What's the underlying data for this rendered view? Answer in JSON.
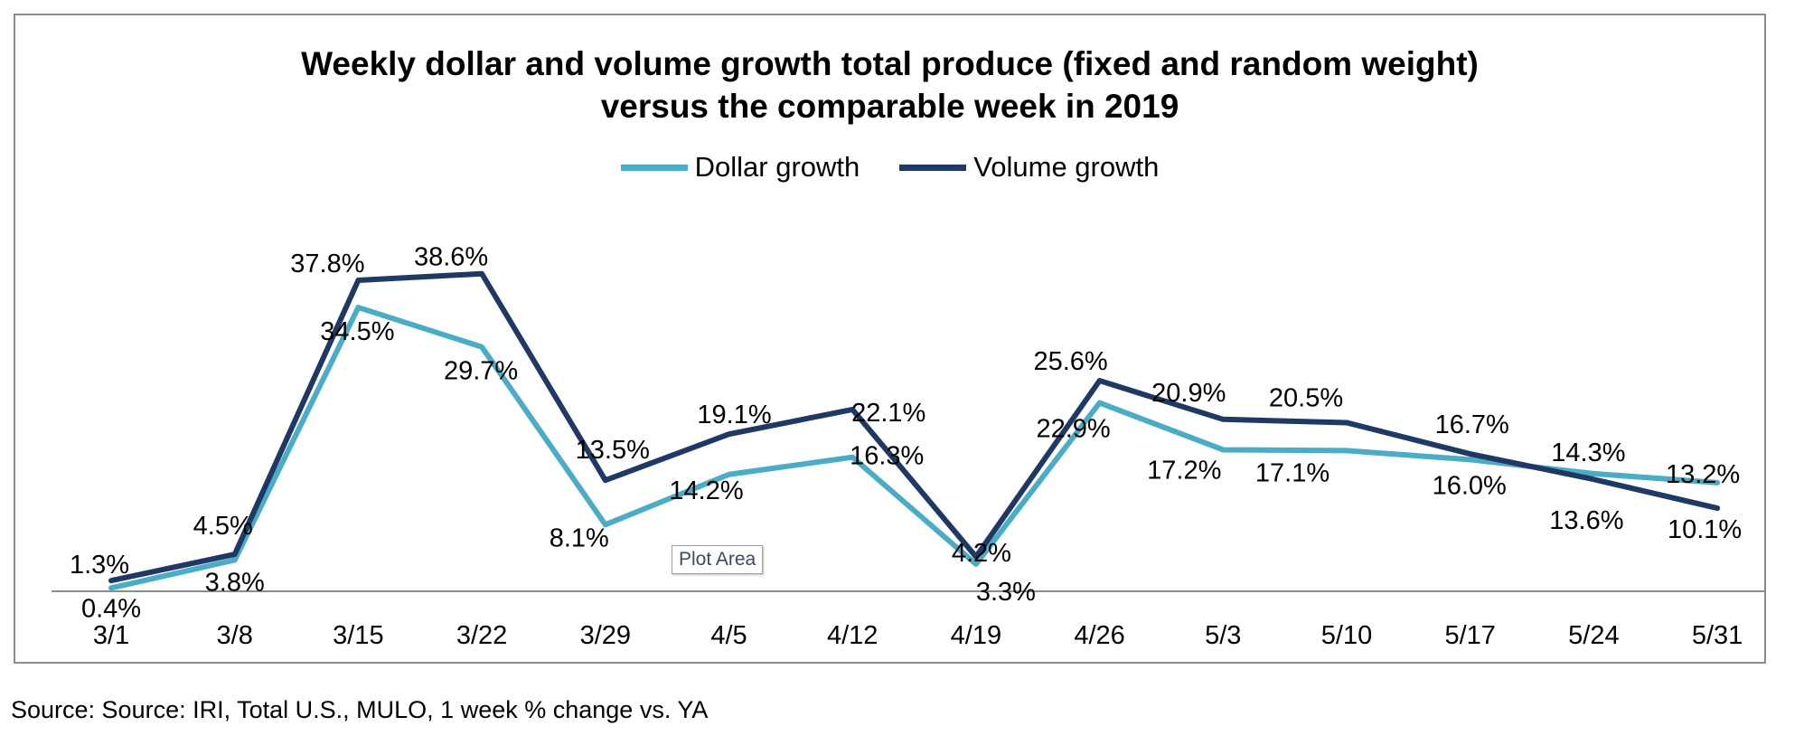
{
  "source_note": "Source: Source: IRI, Total U.S., MULO, 1 week % change vs. YA",
  "tooltip_label": "Plot Area",
  "chart_data": {
    "type": "line",
    "title_line1": "Weekly dollar and volume growth  total produce (fixed and random weight)",
    "title_line2": "versus the comparable week in 2019",
    "categories": [
      "3/1",
      "3/8",
      "3/15",
      "3/22",
      "3/29",
      "4/5",
      "4/12",
      "4/19",
      "4/26",
      "5/3",
      "5/10",
      "5/17",
      "5/24",
      "5/31"
    ],
    "ylim": [
      0,
      40
    ],
    "grid": false,
    "legend_position": "top-center",
    "series": [
      {
        "name": "Dollar growth",
        "color": "#4bacc6",
        "values": [
          0.4,
          3.8,
          34.5,
          29.7,
          8.1,
          14.2,
          16.3,
          3.3,
          22.9,
          17.2,
          17.1,
          16.0,
          14.3,
          13.2
        ],
        "labels": [
          "0.4%",
          "3.8%",
          "34.5%",
          "29.7%",
          "8.1%",
          "14.2%",
          "16.3%",
          "3.3%",
          "22.9%",
          "17.2%",
          "17.1%",
          "16.0%",
          "14.3%",
          "13.2%"
        ]
      },
      {
        "name": "Volume growth",
        "color": "#1f3864",
        "values": [
          1.3,
          4.5,
          37.8,
          38.6,
          13.5,
          19.1,
          22.1,
          4.2,
          25.6,
          20.9,
          20.5,
          16.7,
          13.6,
          10.1
        ],
        "labels": [
          "1.3%",
          "4.5%",
          "37.8%",
          "38.6%",
          "13.5%",
          "19.1%",
          "22.1%",
          "4.2%",
          "25.6%",
          "20.9%",
          "20.5%",
          "16.7%",
          "13.6%",
          "10.1%"
        ]
      }
    ]
  }
}
